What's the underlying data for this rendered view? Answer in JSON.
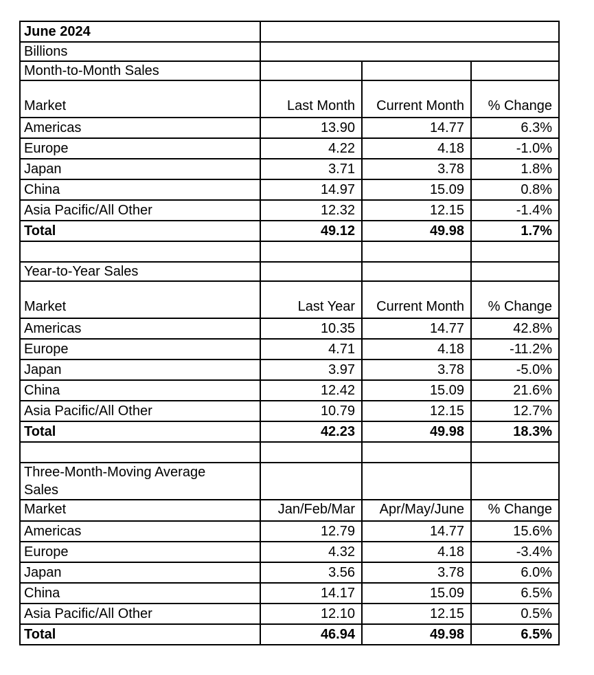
{
  "doc": {
    "title": "June 2024",
    "units_label": "Billions"
  },
  "colors": {
    "text": "#000000",
    "border": "#000000",
    "background": "#ffffff"
  },
  "sections": [
    {
      "title": "Month-to-Month Sales",
      "headers": {
        "market": "Market",
        "baseline": "Last Month",
        "current": "Current\nMonth",
        "change": "% Change"
      },
      "rows": [
        {
          "market": "Americas",
          "baseline": "13.90",
          "current": "14.77",
          "change": "6.3%"
        },
        {
          "market": "Europe",
          "baseline": "4.22",
          "current": "4.18",
          "change": "-1.0%"
        },
        {
          "market": "Japan",
          "baseline": "3.71",
          "current": "3.78",
          "change": "1.8%"
        },
        {
          "market": "China",
          "baseline": "14.97",
          "current": "15.09",
          "change": "0.8%"
        },
        {
          "market": "Asia Pacific/All Other",
          "baseline": "12.32",
          "current": "12.15",
          "change": "-1.4%"
        }
      ],
      "total": {
        "market": "Total",
        "baseline": "49.12",
        "current": "49.98",
        "change": "1.7%"
      }
    },
    {
      "title": "Year-to-Year Sales",
      "headers": {
        "market": "Market",
        "baseline": "Last Year",
        "current": "Current\nMonth",
        "change": "% Change"
      },
      "rows": [
        {
          "market": "Americas",
          "baseline": "10.35",
          "current": "14.77",
          "change": "42.8%"
        },
        {
          "market": "Europe",
          "baseline": "4.71",
          "current": "4.18",
          "change": "-11.2%"
        },
        {
          "market": "Japan",
          "baseline": "3.97",
          "current": "3.78",
          "change": "-5.0%"
        },
        {
          "market": "China",
          "baseline": "12.42",
          "current": "15.09",
          "change": "21.6%"
        },
        {
          "market": "Asia Pacific/All Other",
          "baseline": "10.79",
          "current": "12.15",
          "change": "12.7%"
        }
      ],
      "total": {
        "market": "Total",
        "baseline": "42.23",
        "current": "49.98",
        "change": "18.3%"
      }
    },
    {
      "title": "Three-Month-Moving Average\nSales",
      "headers": {
        "market": "Market",
        "baseline": "Jan/Feb/Mar",
        "current": "Apr/May/June",
        "change": "% Change"
      },
      "rows": [
        {
          "market": "Americas",
          "baseline": "12.79",
          "current": "14.77",
          "change": "15.6%"
        },
        {
          "market": "Europe",
          "baseline": "4.32",
          "current": "4.18",
          "change": "-3.4%"
        },
        {
          "market": "Japan",
          "baseline": "3.56",
          "current": "3.78",
          "change": "6.0%"
        },
        {
          "market": "China",
          "baseline": "14.17",
          "current": "15.09",
          "change": "6.5%"
        },
        {
          "market": "Asia Pacific/All Other",
          "baseline": "12.10",
          "current": "12.15",
          "change": "0.5%"
        }
      ],
      "total": {
        "market": "Total",
        "baseline": "46.94",
        "current": "49.98",
        "change": "6.5%"
      }
    }
  ]
}
